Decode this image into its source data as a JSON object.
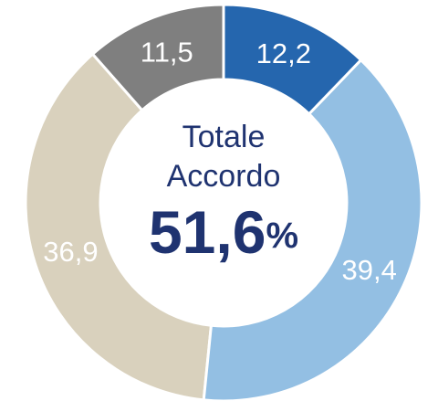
{
  "chart_data": {
    "type": "donut",
    "categories": [
      null,
      null,
      null,
      null
    ],
    "values": [
      12.2,
      39.4,
      36.9,
      11.5
    ],
    "value_labels": [
      "12,2",
      "39,4",
      "36,9",
      "11,5"
    ],
    "colors": [
      "#2566ae",
      "#93bfe3",
      "#d9d1bd",
      "#7f7f7f"
    ],
    "center_text": [
      "Totale",
      "Accordo"
    ],
    "total_label": "51,6",
    "total_unit": "%"
  }
}
